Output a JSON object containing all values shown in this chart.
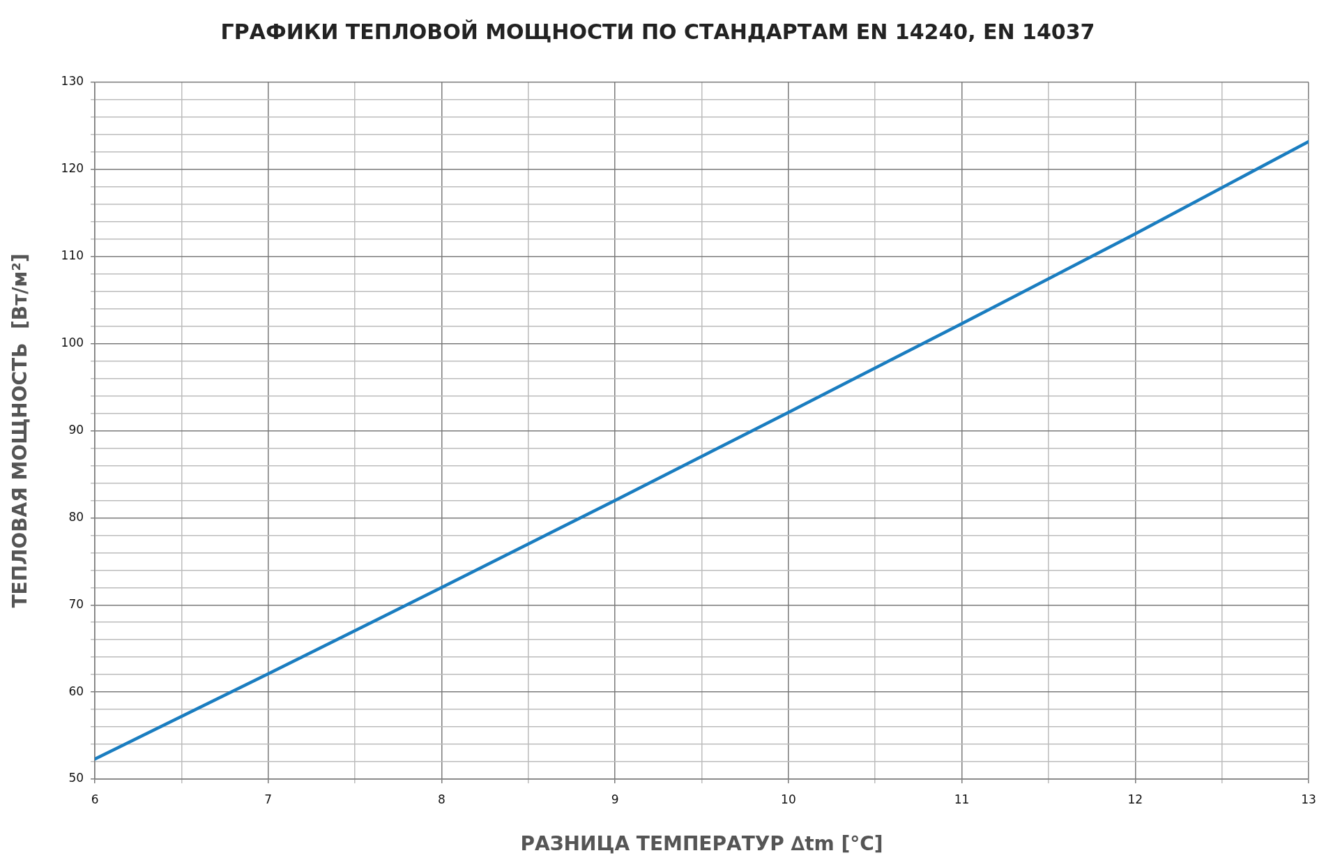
{
  "chart_data": {
    "type": "line",
    "title": "ГРАФИКИ ТЕПЛОВОЙ МОЩНОСТИ ПО СТАНДАРТАМ EN 14240, EN 14037",
    "xlabel": "РАЗНИЦА ТЕМПЕРАТУР ∆tm [°C]",
    "ylabel": "ТЕПЛОВАЯ МОЩНОСТЬ  [Вт/м²]",
    "x": [
      6,
      7,
      8,
      9,
      10,
      11,
      12,
      13
    ],
    "series": [
      {
        "color": "#1a7dc0",
        "values": [
          52.3,
          62.1,
          72.0,
          82.0,
          92.1,
          102.3,
          112.6,
          123.2
        ]
      }
    ],
    "xlim": [
      6,
      13
    ],
    "xticks": [
      6,
      {
        "value": 6.5,
        "label": null
      },
      7,
      {
        "value": 7.5,
        "label": null
      },
      8,
      {
        "value": 8.5,
        "label": null
      },
      9,
      {
        "value": 9.5,
        "label": null
      },
      10,
      {
        "value": 10.5,
        "label": null
      },
      11,
      {
        "value": 11.5,
        "label": null
      },
      12,
      {
        "value": 12.5,
        "label": null
      },
      13
    ],
    "ylim": [
      50,
      130
    ],
    "yticks": [
      50,
      {
        "value": 52,
        "label": null
      },
      {
        "value": 54,
        "label": null
      },
      {
        "value": 56,
        "label": null
      },
      {
        "value": 58,
        "label": null
      },
      60,
      {
        "value": 62,
        "label": null
      },
      {
        "value": 64,
        "label": null
      },
      {
        "value": 66,
        "label": null
      },
      {
        "value": 68,
        "label": null
      },
      70,
      {
        "value": 72,
        "label": null
      },
      {
        "value": 74,
        "label": null
      },
      {
        "value": 76,
        "label": null
      },
      {
        "value": 78,
        "label": null
      },
      80,
      {
        "value": 82,
        "label": null
      },
      {
        "value": 84,
        "label": null
      },
      {
        "value": 86,
        "label": null
      },
      {
        "value": 88,
        "label": null
      },
      90,
      {
        "value": 92,
        "label": null
      },
      {
        "value": 94,
        "label": null
      },
      {
        "value": 96,
        "label": null
      },
      {
        "value": 98,
        "label": null
      },
      100,
      {
        "value": 102,
        "label": null
      },
      {
        "value": 104,
        "label": null
      },
      {
        "value": 106,
        "label": null
      },
      {
        "value": 108,
        "label": null
      },
      110,
      {
        "value": 112,
        "label": null
      },
      {
        "value": 114,
        "label": null
      },
      {
        "value": 116,
        "label": null
      },
      {
        "value": 118,
        "label": null
      },
      120,
      {
        "value": 122,
        "label": null
      },
      {
        "value": 124,
        "label": null
      },
      {
        "value": 126,
        "label": null
      },
      {
        "value": 128,
        "label": null
      },
      130
    ],
    "grid": true,
    "legend": false,
    "marker": "none",
    "line_style": "solid"
  }
}
